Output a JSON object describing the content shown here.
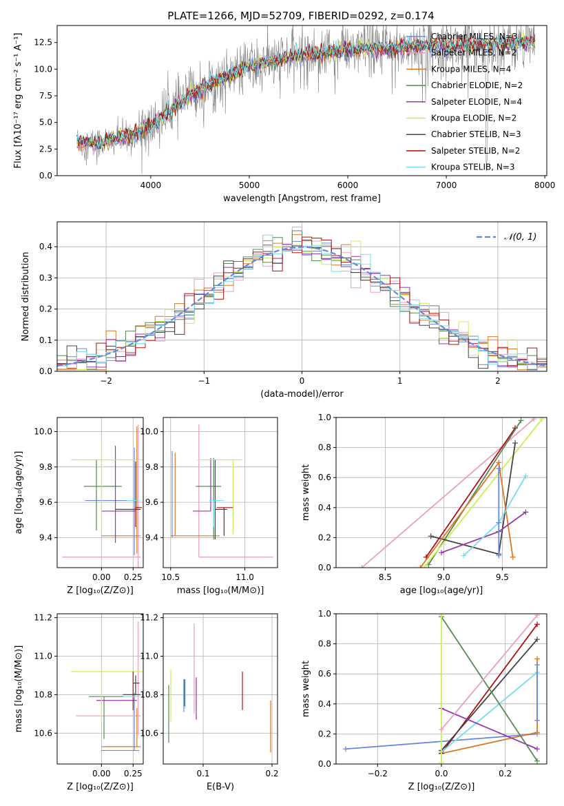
{
  "figure_title": "PLATE=1266, MJD=52709, FIBERID=0292, z=0.174",
  "colors": {
    "chabrier_miles": "#6688dd",
    "salpeter_miles": "#e8a0c0",
    "kroupa_miles": "#dd7722",
    "chabrier_elodie": "#558855",
    "salpeter_elodie": "#9933aa",
    "kroupa_elodie": "#ccee55",
    "chabrier_stelib": "#444444",
    "salpeter_stelib": "#aa1111",
    "kroupa_stelib": "#77ddee",
    "data_spectrum": "#808080",
    "gaussian": "#6688dd",
    "grid": "#b0b0b0"
  },
  "chart_data": [
    {
      "id": "spectrum",
      "type": "line",
      "xlabel": "wavelength [Angstrom, rest frame]",
      "ylabel": "Flux [fλ10⁻¹⁷ erg cm⁻² s⁻¹ A⁻¹]",
      "xlim": [
        3050,
        8020
      ],
      "ylim": [
        0,
        14.1
      ],
      "xticks": [
        "4000",
        "5000",
        "6000",
        "7000",
        "8000"
      ],
      "yticks": [
        "0.0",
        "2.5",
        "5.0",
        "7.5",
        "10.0",
        "12.5"
      ],
      "grid": false,
      "legend_position": "top-right",
      "legend": [
        "Chabrier MILES, N_SSP=3",
        "Salpeter MILES, N_SSP=2",
        "Kroupa MILES, N_SSP=4",
        "Chabrier ELODIE, N_SSP=2",
        "Salpeter ELODIE, N_SSP=4",
        "Kroupa ELODIE, N_SSP=2",
        "Chabrier STELIB, N_SSP=3",
        "Salpeter STELIB, N_SSP=2",
        "Kroupa STELIB, N_SSP=3"
      ],
      "model_envelope": {
        "wavelength": [
          3250,
          3400,
          3600,
          3800,
          4000,
          4200,
          4400,
          4600,
          4800,
          5000,
          5200,
          5400,
          5600,
          5800,
          6000,
          6200,
          6400,
          6600,
          6800,
          7000,
          7200,
          7400,
          7600,
          7900
        ],
        "flux": [
          3.2,
          3.0,
          3.3,
          3.8,
          4.6,
          6.2,
          7.5,
          8.6,
          9.4,
          10.2,
          10.7,
          11.1,
          11.4,
          11.6,
          11.8,
          11.9,
          12.0,
          12.1,
          12.2,
          12.2,
          12.3,
          12.3,
          12.4,
          12.5
        ]
      }
    },
    {
      "id": "residuals",
      "type": "line",
      "xlabel": "(data-model)/error",
      "ylabel": "Normed distribution",
      "xlim": [
        -2.5,
        2.5
      ],
      "ylim": [
        0,
        0.48
      ],
      "xticks": [
        "−2",
        "−1",
        "0",
        "1",
        "2"
      ],
      "yticks": [
        "0.0",
        "0.1",
        "0.2",
        "0.3",
        "0.4"
      ],
      "grid": true,
      "legend_position": "top-right",
      "legend": [
        "𝒩(0, 1)"
      ],
      "bin_width": 0.1
    },
    {
      "id": "age-vs-Z",
      "type": "scatter",
      "xlabel": "Z [log₁₀(Z/Z⊙)]",
      "ylabel": "age  [log₁₀(age/yr)]",
      "xlim": [
        -0.35,
        0.33
      ],
      "ylim": [
        9.23,
        10.08
      ],
      "xticks": [
        "0.00",
        "0.25"
      ],
      "yticks": [
        "9.4",
        "9.6",
        "9.8",
        "10.0"
      ],
      "grid": true,
      "points": [
        {
          "model": "chabrier_miles",
          "x": 0.26,
          "xerr": [
            0.39,
            0.04
          ],
          "y": 9.61,
          "yerr": [
            0.31,
            0.3
          ]
        },
        {
          "model": "salpeter_miles",
          "x": 0.29,
          "xerr": [
            0.6,
            0.02
          ],
          "y": 9.29,
          "yerr": [
            0.2,
            0.75
          ]
        },
        {
          "model": "kroupa_miles",
          "x": 0.28,
          "xerr": [
            0.28,
            0.03
          ],
          "y": 9.41,
          "yerr": [
            0.1,
            0.62
          ]
        },
        {
          "model": "chabrier_elodie",
          "x": -0.04,
          "xerr": [
            0.1,
            0.2
          ],
          "y": 9.69,
          "yerr": [
            0.25,
            0.15
          ]
        },
        {
          "model": "salpeter_elodie",
          "x": 0.11,
          "xerr": [
            0.11,
            0.16
          ],
          "y": 9.55,
          "yerr": [
            0.18,
            0.37
          ]
        },
        {
          "model": "kroupa_elodie",
          "x": 0.0,
          "xerr": [
            0.24,
            0.39
          ],
          "y": 9.84,
          "yerr": [
            0.41,
            0.12
          ]
        },
        {
          "model": "chabrier_stelib",
          "x": 0.27,
          "xerr": [
            0.16,
            0.04
          ],
          "y": 9.56,
          "yerr": [
            0.0,
            0.27
          ]
        },
        {
          "model": "salpeter_stelib",
          "x": 0.27,
          "xerr": [
            0.0,
            0.05
          ],
          "y": 9.57,
          "yerr": [
            0.11,
            0.0
          ]
        },
        {
          "model": "kroupa_stelib",
          "x": 0.2,
          "xerr": [
            0.0,
            0.1
          ],
          "y": 9.61,
          "yerr": [
            0.0,
            0.0
          ]
        }
      ]
    },
    {
      "id": "age-vs-mass",
      "type": "scatter",
      "xlabel": "mass [log₁₀(M/M⊙)]",
      "ylabel": "",
      "xlim": [
        10.45,
        11.22
      ],
      "ylim": [
        9.23,
        10.08
      ],
      "xticks": [
        "10.5",
        "11.0"
      ],
      "yticks": [
        "9.4",
        "9.6",
        "9.8",
        "10.0"
      ],
      "grid": true,
      "points": [
        {
          "model": "chabrier_miles",
          "x": 10.51,
          "xerr": [
            0.0,
            0.0
          ],
          "y": 9.61,
          "yerr": [
            0.21,
            0.28
          ]
        },
        {
          "model": "salpeter_miles",
          "x": 10.69,
          "xerr": [
            0.0,
            0.5
          ],
          "y": 9.29,
          "yerr": [
            0.0,
            0.75
          ]
        },
        {
          "model": "kroupa_miles",
          "x": 10.53,
          "xerr": [
            0.03,
            0.3
          ],
          "y": 9.41,
          "yerr": [
            0.0,
            0.47
          ]
        },
        {
          "model": "chabrier_elodie",
          "x": 10.79,
          "xerr": [
            0.12,
            0.05
          ],
          "y": 9.69,
          "yerr": [
            0.3,
            0.16
          ]
        },
        {
          "model": "salpeter_elodie",
          "x": 10.77,
          "xerr": [
            0.12,
            0.0
          ],
          "y": 9.55,
          "yerr": [
            0.0,
            0.3
          ]
        },
        {
          "model": "kroupa_elodie",
          "x": 10.92,
          "xerr": [
            0.24,
            0.06
          ],
          "y": 9.84,
          "yerr": [
            0.42,
            0.0
          ]
        },
        {
          "model": "chabrier_stelib",
          "x": 10.8,
          "xerr": [
            0.0,
            0.08
          ],
          "y": 9.56,
          "yerr": [
            0.17,
            0.28
          ]
        },
        {
          "model": "salpeter_stelib",
          "x": 10.86,
          "xerr": [
            0.05,
            0.06
          ],
          "y": 9.57,
          "yerr": [
            0.16,
            0.0
          ]
        },
        {
          "model": "kroupa_stelib",
          "x": 10.79,
          "xerr": [
            0.03,
            0.07
          ],
          "y": 9.61,
          "yerr": [
            0.15,
            0.0
          ]
        }
      ]
    },
    {
      "id": "mass-weight-vs-age",
      "type": "line",
      "xlabel": "age  [log₁₀(age/yr)]",
      "ylabel": "mass weight",
      "xlim": [
        8.08,
        9.88
      ],
      "ylim": [
        0,
        1.0
      ],
      "xticks": [
        "8.5",
        "9.0",
        "9.5"
      ],
      "yticks": [
        "0.0",
        "0.2",
        "0.4",
        "0.6",
        "0.8",
        "1.0"
      ],
      "grid": true,
      "series": [
        {
          "model": "salpeter_miles",
          "x": [
            8.3,
            9.77
          ],
          "y": [
            0.0,
            0.99
          ]
        },
        {
          "model": "salpeter_stelib",
          "x": [
            8.85,
            9.61
          ],
          "y": [
            0.07,
            0.93
          ]
        },
        {
          "model": "chabrier_elodie",
          "x": [
            8.87,
            9.66
          ],
          "y": [
            0.02,
            0.98
          ]
        },
        {
          "model": "kroupa_elodie",
          "x": [
            8.84,
            9.84
          ],
          "y": [
            0.01,
            0.99
          ]
        },
        {
          "model": "chabrier_stelib",
          "x": [
            8.89,
            9.47,
            9.61
          ],
          "y": [
            0.21,
            0.09,
            0.83
          ]
        },
        {
          "model": "kroupa_miles",
          "x": [
            8.8,
            9.47,
            9.59
          ],
          "y": [
            0.0,
            0.7,
            0.07
          ]
        },
        {
          "model": "salpeter_elodie",
          "x": [
            8.98,
            9.47,
            9.7
          ],
          "y": [
            0.1,
            0.24,
            0.37
          ]
        },
        {
          "model": "kroupa_stelib",
          "x": [
            9.17,
            9.47,
            9.7
          ],
          "y": [
            0.08,
            0.3,
            0.61
          ]
        },
        {
          "model": "chabrier_miles",
          "x": [
            9.47,
            9.47,
            9.47
          ],
          "y": [
            0.3,
            0.66,
            0.08
          ]
        }
      ]
    },
    {
      "id": "mass-vs-Z",
      "type": "scatter",
      "xlabel": "Z [log₁₀(Z/Z⊙)]",
      "ylabel": "mass [log₁₀(M/M⊙)]",
      "xlim": [
        -0.35,
        0.33
      ],
      "ylim": [
        10.44,
        11.22
      ],
      "xticks": [
        "0.00",
        "0.25"
      ],
      "yticks": [
        "10.6",
        "10.8",
        "11.0",
        "11.2"
      ],
      "grid": true,
      "points": [
        {
          "model": "chabrier_miles",
          "x": 0.26,
          "xerr": [
            0.26,
            0.04
          ],
          "y": 10.51,
          "yerr": [
            0.0,
            0.3
          ]
        },
        {
          "model": "salpeter_miles",
          "x": 0.29,
          "xerr": [
            0.49,
            0.02
          ],
          "y": 10.69,
          "yerr": [
            0.1,
            0.49
          ]
        },
        {
          "model": "kroupa_miles",
          "x": 0.28,
          "xerr": [
            0.28,
            0.03
          ],
          "y": 10.53,
          "yerr": [
            0.0,
            0.2
          ]
        },
        {
          "model": "chabrier_elodie",
          "x": 0.02,
          "xerr": [
            0.12,
            0.16
          ],
          "y": 10.79,
          "yerr": [
            0.22,
            0.0
          ]
        },
        {
          "model": "salpeter_elodie",
          "x": 0.18,
          "xerr": [
            0.22,
            0.1
          ],
          "y": 10.77,
          "yerr": [
            0.0,
            0.0
          ]
        },
        {
          "model": "kroupa_elodie",
          "x": 0.0,
          "xerr": [
            0.24,
            0.38
          ],
          "y": 10.92,
          "yerr": [
            0.26,
            0.0
          ]
        },
        {
          "model": "chabrier_stelib",
          "x": 0.27,
          "xerr": [
            0.1,
            0.04
          ],
          "y": 10.8,
          "yerr": [
            0.0,
            0.1
          ]
        },
        {
          "model": "salpeter_stelib",
          "x": 0.25,
          "xerr": [
            0.0,
            0.05
          ],
          "y": 10.86,
          "yerr": [
            0.14,
            0.06
          ]
        },
        {
          "model": "kroupa_stelib",
          "x": 0.22,
          "xerr": [
            0.05,
            0.08
          ],
          "y": 10.79,
          "yerr": [
            0.0,
            0.0
          ]
        }
      ]
    },
    {
      "id": "mass-vs-EBV",
      "type": "scatter",
      "xlabel": "E(B-V)",
      "ylabel": "",
      "xlim": [
        0.042,
        0.208
      ],
      "ylim": [
        10.44,
        11.22
      ],
      "xticks": [
        "0.1",
        "0.2"
      ],
      "yticks": [
        "10.6",
        "10.8",
        "11.0",
        "11.2"
      ],
      "grid": true,
      "points": [
        {
          "model": "chabrier_miles",
          "x": 0.072,
          "xerr": [
            0.0,
            0.0
          ],
          "y": 10.79,
          "yerr": [
            0.08,
            0.09
          ]
        },
        {
          "model": "salpeter_miles",
          "x": 0.087,
          "xerr": [
            0.0,
            0.0
          ],
          "y": 10.9,
          "yerr": [
            0.2,
            0.27
          ]
        },
        {
          "model": "kroupa_miles",
          "x": 0.198,
          "xerr": [
            0.0,
            0.0
          ],
          "y": 10.62,
          "yerr": [
            0.12,
            0.15
          ]
        },
        {
          "model": "chabrier_elodie",
          "x": 0.05,
          "xerr": [
            0.0,
            0.0
          ],
          "y": 10.7,
          "yerr": [
            0.15,
            0.15
          ]
        },
        {
          "model": "salpeter_elodie",
          "x": 0.09,
          "xerr": [
            0.0,
            0.0
          ],
          "y": 10.77,
          "yerr": [
            0.1,
            0.12
          ]
        },
        {
          "model": "kroupa_elodie",
          "x": 0.053,
          "xerr": [
            0.0,
            0.0
          ],
          "y": 10.78,
          "yerr": [
            0.12,
            0.15
          ]
        },
        {
          "model": "chabrier_stelib",
          "x": 0.073,
          "xerr": [
            0.0,
            0.0
          ],
          "y": 10.8,
          "yerr": [
            0.06,
            0.08
          ]
        },
        {
          "model": "salpeter_stelib",
          "x": 0.157,
          "xerr": [
            0.0,
            0.0
          ],
          "y": 10.82,
          "yerr": [
            0.1,
            0.1
          ]
        },
        {
          "model": "kroupa_stelib",
          "x": 0.074,
          "xerr": [
            0.0,
            0.0
          ],
          "y": 10.8,
          "yerr": [
            0.07,
            0.08
          ]
        }
      ]
    },
    {
      "id": "mass-weight-vs-Z",
      "type": "line",
      "xlabel": "Z [log₁₀(Z/Z⊙)]",
      "ylabel": "mass weight",
      "xlim": [
        -0.33,
        0.33
      ],
      "ylim": [
        0,
        1.0
      ],
      "xticks": [
        "−0.2",
        "0.0",
        "0.2"
      ],
      "yticks": [
        "0.0",
        "0.2",
        "0.4",
        "0.6",
        "0.8",
        "1.0"
      ],
      "grid": true,
      "series": [
        {
          "model": "chabrier_miles",
          "x": [
            -0.3,
            0.3
          ],
          "y": [
            0.1,
            0.2
          ]
        },
        {
          "model": "kroupa_miles",
          "x": [
            0.0,
            0.3,
            0.3
          ],
          "y": [
            0.07,
            0.21,
            0.7
          ]
        },
        {
          "model": "salpeter_stelib",
          "x": [
            0.0,
            0.3
          ],
          "y": [
            0.07,
            0.93
          ]
        },
        {
          "model": "chabrier_stelib",
          "x": [
            0.0,
            0.3
          ],
          "y": [
            0.09,
            0.83
          ]
        },
        {
          "model": "kroupa_stelib",
          "x": [
            0.0,
            0.3
          ],
          "y": [
            0.08,
            0.61
          ]
        },
        {
          "model": "salpeter_elodie",
          "x": [
            0.0,
            0.3
          ],
          "y": [
            0.37,
            0.1
          ]
        },
        {
          "model": "chabrier_elodie",
          "x": [
            0.0,
            0.3
          ],
          "y": [
            0.98,
            0.02
          ]
        },
        {
          "model": "kroupa_elodie",
          "x": [
            0.0,
            0.0
          ],
          "y": [
            0.99,
            0.01
          ]
        },
        {
          "model": "salpeter_miles",
          "x": [
            0.0,
            0.3
          ],
          "y": [
            0.23,
            0.99
          ]
        },
        {
          "model": "chabrier_miles",
          "x": [
            0.3,
            0.3
          ],
          "y": [
            0.29,
            0.66
          ]
        }
      ]
    }
  ]
}
